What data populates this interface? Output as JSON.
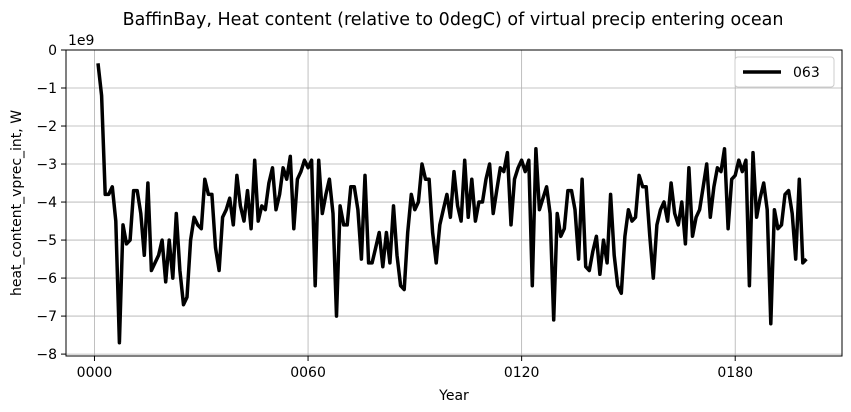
{
  "chart_data": {
    "type": "line",
    "title": "BaffinBay, Heat content (relative to 0degC) of virtual precip entering ocean",
    "xlabel": "Year",
    "ylabel": "heat_content_vprec_int, W",
    "y_offset_label": "1e9",
    "xlim": [
      -8,
      210
    ],
    "ylim": [
      -8.05,
      0
    ],
    "x_ticks": [
      0,
      60,
      120,
      180
    ],
    "x_tick_labels": [
      "0000",
      "0060",
      "0120",
      "0180"
    ],
    "y_ticks": [
      0,
      -1,
      -2,
      -3,
      -4,
      -5,
      -6,
      -7,
      -8
    ],
    "y_tick_labels": [
      "0",
      "−1",
      "−2",
      "−3",
      "−4",
      "−5",
      "−6",
      "−7",
      "−8"
    ],
    "grid": true,
    "legend_position": "top-right",
    "series": [
      {
        "name": "063",
        "color": "#000000",
        "x": [
          1,
          2,
          3,
          4,
          5,
          6,
          7,
          8,
          9,
          10,
          11,
          12,
          13,
          14,
          15,
          16,
          17,
          18,
          19,
          20,
          21,
          22,
          23,
          24,
          25,
          26,
          27,
          28,
          29,
          30,
          31,
          32,
          33,
          34,
          35,
          36,
          37,
          38,
          39,
          40,
          41,
          42,
          43,
          44,
          45,
          46,
          47,
          48,
          49,
          50,
          51,
          52,
          53,
          54,
          55,
          56,
          57,
          58,
          59,
          60,
          61,
          62,
          63,
          64,
          65,
          66,
          67,
          68,
          69,
          70,
          71,
          72,
          73,
          74,
          75,
          76,
          77,
          78,
          79,
          80,
          81,
          82,
          83,
          84,
          85,
          86,
          87,
          88,
          89,
          90,
          91,
          92,
          93,
          94,
          95,
          96,
          97,
          98,
          99,
          100,
          101,
          102,
          103,
          104,
          105,
          106,
          107,
          108,
          109,
          110,
          111,
          112,
          113,
          114,
          115,
          116,
          117,
          118,
          119,
          120,
          121,
          122,
          123,
          124,
          125,
          126,
          127,
          128,
          129,
          130,
          131,
          132,
          133,
          134,
          135,
          136,
          137,
          138,
          139,
          140,
          141,
          142,
          143,
          144,
          145,
          146,
          147,
          148,
          149,
          150,
          151,
          152,
          153,
          154,
          155,
          156,
          157,
          158,
          159,
          160,
          161,
          162,
          163,
          164,
          165,
          166,
          167,
          168,
          169,
          170,
          171,
          172,
          173,
          174,
          175,
          176,
          177,
          178,
          179,
          180,
          181,
          182,
          183,
          184,
          185,
          186,
          187,
          188,
          189,
          190,
          191,
          192,
          193,
          194,
          195,
          196,
          197,
          198,
          199,
          200
        ],
        "y": [
          -0.35,
          -1.2,
          -3.8,
          -3.8,
          -3.6,
          -4.5,
          -7.7,
          -4.6,
          -5.1,
          -5.0,
          -3.7,
          -3.7,
          -4.3,
          -5.4,
          -3.5,
          -5.8,
          -5.6,
          -5.4,
          -5.0,
          -6.1,
          -5.0,
          -6.0,
          -4.3,
          -5.8,
          -6.7,
          -6.5,
          -5.0,
          -4.4,
          -4.6,
          -4.7,
          -3.4,
          -3.8,
          -3.8,
          -5.2,
          -5.8,
          -4.4,
          -4.2,
          -3.9,
          -4.6,
          -3.3,
          -4.1,
          -4.5,
          -3.7,
          -4.7,
          -2.9,
          -4.5,
          -4.1,
          -4.2,
          -3.5,
          -3.1,
          -4.2,
          -3.8,
          -3.1,
          -3.4,
          -2.8,
          -4.7,
          -3.4,
          -3.2,
          -2.9,
          -3.1,
          -2.9,
          -6.2,
          -2.9,
          -4.3,
          -3.8,
          -3.4,
          -4.3,
          -7.0,
          -4.1,
          -4.6,
          -4.6,
          -3.6,
          -3.6,
          -4.2,
          -5.5,
          -3.3,
          -5.6,
          -5.6,
          -5.2,
          -4.8,
          -5.7,
          -4.8,
          -5.6,
          -4.1,
          -5.4,
          -6.2,
          -6.3,
          -4.8,
          -3.8,
          -4.2,
          -4.0,
          -3.0,
          -3.4,
          -3.4,
          -4.8,
          -5.6,
          -4.6,
          -4.2,
          -3.8,
          -4.4,
          -3.2,
          -4.1,
          -4.5,
          -2.9,
          -4.4,
          -3.4,
          -4.5,
          -4.0,
          -4.0,
          -3.4,
          -3.0,
          -4.3,
          -3.7,
          -3.1,
          -3.2,
          -2.7,
          -4.6,
          -3.4,
          -3.1,
          -2.9,
          -3.2,
          -2.9,
          -6.2,
          -2.6,
          -4.2,
          -3.9,
          -3.6,
          -4.3,
          -7.1,
          -4.3,
          -4.9,
          -4.7,
          -3.7,
          -3.7,
          -4.2,
          -5.5,
          -3.4,
          -5.7,
          -5.8,
          -5.3,
          -4.9,
          -5.9,
          -5.0,
          -5.6,
          -3.8,
          -5.4,
          -6.2,
          -6.4,
          -4.9,
          -4.2,
          -4.5,
          -4.4,
          -3.3,
          -3.6,
          -3.6,
          -4.9,
          -6.0,
          -4.6,
          -4.2,
          -4.0,
          -4.5,
          -3.5,
          -4.3,
          -4.6,
          -4.0,
          -5.1,
          -3.1,
          -4.9,
          -4.4,
          -4.2,
          -3.6,
          -3.0,
          -4.4,
          -3.6,
          -3.1,
          -3.2,
          -2.6,
          -4.7,
          -3.4,
          -3.3,
          -2.9,
          -3.2,
          -2.9,
          -6.2,
          -2.7,
          -4.4,
          -3.9,
          -3.5,
          -4.2,
          -7.2,
          -4.2,
          -4.7,
          -4.6,
          -3.8,
          -3.7,
          -4.3,
          -5.5,
          -3.4,
          -5.6,
          -5.5
        ]
      }
    ]
  }
}
